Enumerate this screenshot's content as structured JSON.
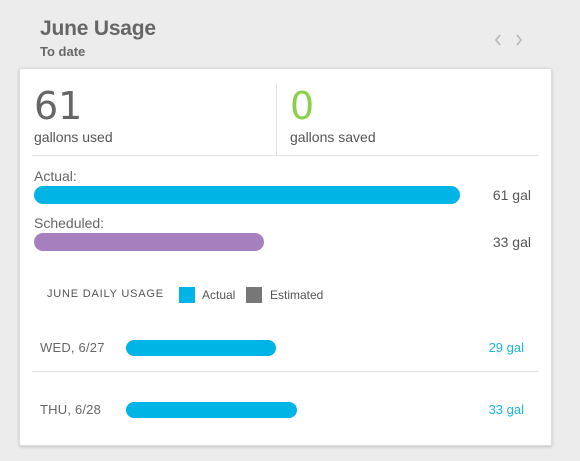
{
  "header": {
    "title": "June Usage",
    "subtitle": "To date",
    "prev_icon": "chevron-left-icon",
    "next_icon": "chevron-right-icon"
  },
  "colors": {
    "actual": "#00b4e6",
    "scheduled": "#a67fbf",
    "estimated": "#777777",
    "saved": "#8bd04a"
  },
  "summary": {
    "used_value": "61",
    "used_label": "gallons used",
    "saved_value": "0",
    "saved_label": "gallons saved"
  },
  "comparison": {
    "max_gallons": 61,
    "rows": [
      {
        "label": "Actual:",
        "gallons": 61,
        "value_text": "61 gal",
        "color": "#00b4e6"
      },
      {
        "label": "Scheduled:",
        "gallons": 33,
        "value_text": "33 gal",
        "color": "#a67fbf"
      }
    ]
  },
  "daily": {
    "title": "JUNE DAILY USAGE",
    "legend": [
      {
        "label": "Actual",
        "color": "#00b4e6"
      },
      {
        "label": "Estimated",
        "color": "#777777"
      }
    ],
    "scale_max_gallons": 58,
    "days": [
      {
        "date": "WED, 6/27",
        "gallons": 29,
        "value_text": "29 gal",
        "type": "actual"
      },
      {
        "date": "THU, 6/28",
        "gallons": 33,
        "value_text": "33 gal",
        "type": "actual"
      }
    ]
  }
}
